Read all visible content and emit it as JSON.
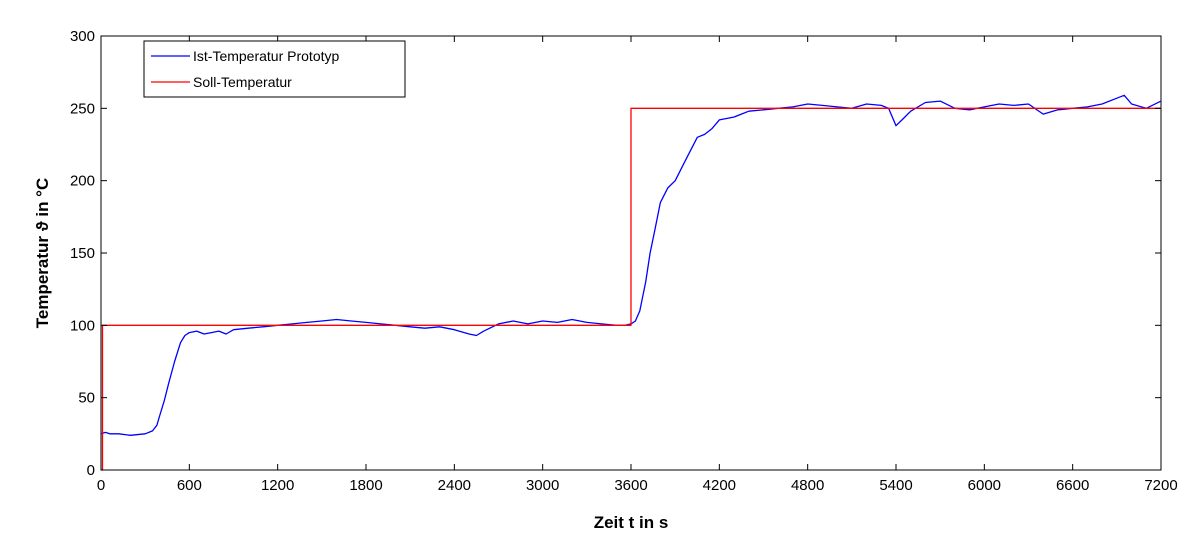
{
  "chart_data": {
    "type": "line",
    "title": "",
    "xlabel": "Zeit t in s",
    "ylabel": "Temperatur ϑ in °C",
    "xlim": [
      0,
      7200
    ],
    "ylim": [
      0,
      300
    ],
    "xticks": [
      0,
      600,
      1200,
      1800,
      2400,
      3000,
      3600,
      4200,
      4800,
      5400,
      6000,
      6600,
      7200
    ],
    "yticks": [
      0,
      50,
      100,
      150,
      200,
      250,
      300
    ],
    "grid": false,
    "legend_position": "top-left",
    "series": [
      {
        "name": "Ist-Temperatur Prototyp",
        "color": "#0000ff",
        "x": [
          0,
          30,
          60,
          120,
          200,
          300,
          350,
          380,
          400,
          430,
          460,
          500,
          540,
          570,
          600,
          650,
          700,
          750,
          800,
          850,
          900,
          1000,
          1100,
          1200,
          1300,
          1400,
          1500,
          1600,
          1700,
          1800,
          1900,
          2000,
          2100,
          2200,
          2300,
          2400,
          2500,
          2550,
          2600,
          2700,
          2800,
          2900,
          3000,
          3100,
          3200,
          3300,
          3400,
          3500,
          3560,
          3600,
          3630,
          3660,
          3700,
          3730,
          3760,
          3800,
          3850,
          3900,
          3950,
          4000,
          4050,
          4100,
          4150,
          4200,
          4250,
          4300,
          4350,
          4400,
          4500,
          4600,
          4700,
          4800,
          4900,
          5000,
          5100,
          5200,
          5300,
          5350,
          5400,
          5450,
          5500,
          5600,
          5700,
          5800,
          5900,
          6000,
          6100,
          6200,
          6300,
          6400,
          6500,
          6600,
          6700,
          6800,
          6900,
          6950,
          7000,
          7100,
          7200
        ],
        "y": [
          25,
          26,
          25,
          25,
          24,
          25,
          27,
          31,
          38,
          48,
          60,
          75,
          88,
          93,
          95,
          96,
          94,
          95,
          96,
          94,
          97,
          98,
          99,
          100,
          101,
          102,
          103,
          104,
          103,
          102,
          101,
          100,
          99,
          98,
          99,
          97,
          94,
          93,
          96,
          101,
          103,
          101,
          103,
          102,
          104,
          102,
          101,
          100,
          100,
          101,
          103,
          110,
          130,
          150,
          165,
          185,
          195,
          200,
          210,
          220,
          230,
          232,
          236,
          242,
          243,
          244,
          246,
          248,
          249,
          250,
          251,
          253,
          252,
          251,
          250,
          253,
          252,
          250,
          238,
          243,
          248,
          254,
          255,
          250,
          249,
          251,
          253,
          252,
          253,
          246,
          249,
          250,
          251,
          253,
          257,
          259,
          253,
          250,
          255
        ]
      },
      {
        "name": "Soll-Temperatur",
        "color": "#ff0000",
        "x": [
          0,
          10,
          10,
          3600,
          3600,
          7200
        ],
        "y": [
          0,
          0,
          100,
          100,
          250,
          250
        ]
      }
    ]
  }
}
